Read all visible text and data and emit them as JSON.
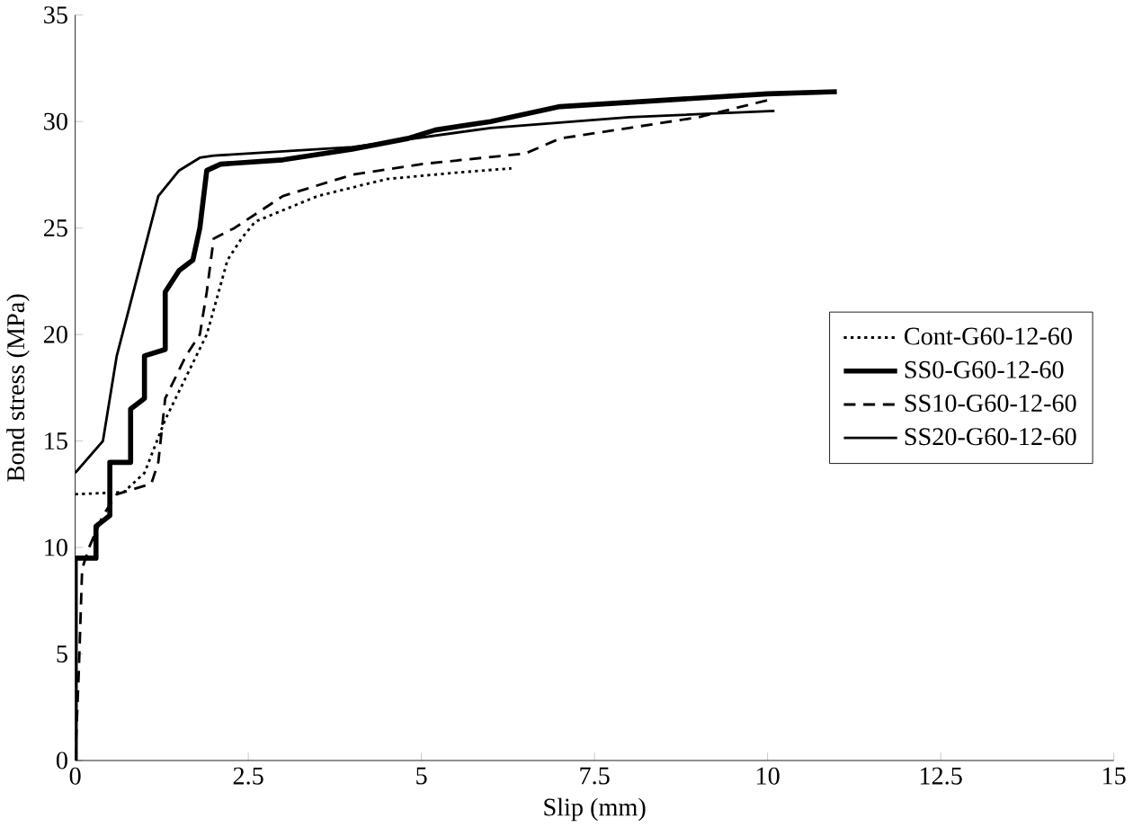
{
  "chart_data": {
    "type": "line",
    "xlabel": "Slip (mm)",
    "ylabel": "Bond stress (MPa)",
    "xlim": [
      0,
      15
    ],
    "ylim": [
      0,
      35
    ],
    "xticks": [
      0,
      2.5,
      5,
      7.5,
      10,
      12.5,
      15
    ],
    "yticks": [
      0,
      5,
      10,
      15,
      20,
      25,
      30,
      35
    ],
    "grid": false,
    "legend": "right",
    "marker": "none",
    "series": [
      {
        "name": "Cont-G60-12-60",
        "color": "#000000",
        "line_style": "dotted",
        "x": [
          0,
          0.7,
          1.0,
          1.3,
          1.6,
          1.9,
          2.2,
          2.4,
          2.6,
          3.5,
          4.5,
          5.5,
          6.3
        ],
        "values": [
          12.5,
          12.6,
          13.5,
          16,
          18,
          20,
          23.5,
          24.5,
          25.3,
          26.5,
          27.3,
          27.6,
          27.8
        ]
      },
      {
        "name": "SS0-G60-12-60",
        "color": "#000000",
        "line_style": "solid",
        "x": [
          0,
          0,
          0.3,
          0.3,
          0.5,
          0.5,
          0.8,
          0.8,
          1.0,
          1.0,
          1.3,
          1.3,
          1.5,
          1.7,
          1.8,
          1.9,
          2.1,
          3,
          4,
          4.8,
          5.2,
          6,
          7,
          8.5,
          10,
          11
        ],
        "values": [
          0,
          9.5,
          9.5,
          11,
          11.5,
          14,
          14,
          16.5,
          17,
          19,
          19.3,
          22,
          23,
          23.5,
          25,
          27.7,
          28,
          28.2,
          28.7,
          29.2,
          29.6,
          30,
          30.7,
          31,
          31.3,
          31.4
        ]
      },
      {
        "name": "SS10-G60-12-60",
        "color": "#000000",
        "line_style": "dashed",
        "x": [
          0,
          0.05,
          0.1,
          0.2,
          0.4,
          0.6,
          1.1,
          1.2,
          1.3,
          1.6,
          1.8,
          1.9,
          2.0,
          2.3,
          3,
          4,
          5,
          6.5,
          7,
          8,
          9,
          10
        ],
        "values": [
          0,
          4,
          9,
          10,
          11.5,
          12.5,
          13,
          14,
          17,
          19,
          20,
          22,
          24.5,
          25,
          26.5,
          27.5,
          28,
          28.5,
          29.2,
          29.7,
          30.2,
          31
        ]
      },
      {
        "name": "SS20-G60-12-60",
        "color": "#000000",
        "line_style": "solid",
        "x": [
          0,
          0.4,
          0.6,
          0.8,
          1.0,
          1.2,
          1.5,
          1.8,
          2,
          4,
          6,
          8,
          10.1
        ],
        "values": [
          13.5,
          15,
          19,
          21.5,
          24,
          26.5,
          27.7,
          28.3,
          28.4,
          28.8,
          29.7,
          30.2,
          30.5
        ]
      }
    ]
  }
}
